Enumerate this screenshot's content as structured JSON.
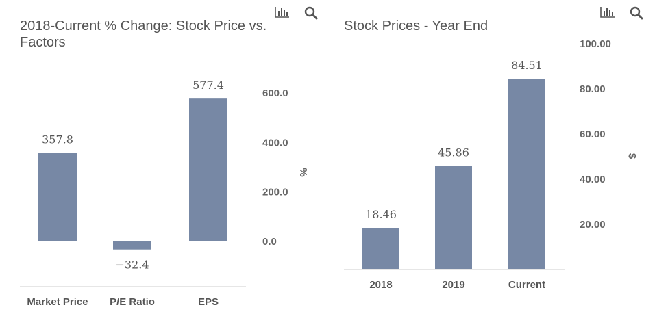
{
  "toolbar": {
    "chart_icon": "bar-chart-icon",
    "search_icon": "search-icon"
  },
  "colors": {
    "bar": "#7788a5",
    "text": "#555555",
    "axis": "#cccccc"
  },
  "chart_data": [
    {
      "type": "bar",
      "title": "2018-Current % Change: Stock Price vs. Factors",
      "title_lines": [
        "2018-Current % Change: Stock Price vs.",
        "Factors"
      ],
      "categories": [
        "Market Price",
        "P/E Ratio",
        "EPS"
      ],
      "values": [
        357.8,
        -32.4,
        577.4
      ],
      "value_labels": [
        "357.8",
        "−32.4",
        "577.4"
      ],
      "ylabel": "%",
      "yticks": [
        0,
        200,
        400,
        600
      ],
      "ytick_labels": [
        "0.0",
        "200.0",
        "400.0",
        "600.0"
      ],
      "y_axis_side": "right",
      "grid": false
    },
    {
      "type": "bar",
      "title": "Stock Prices - Year End",
      "categories": [
        "2018",
        "2019",
        "Current"
      ],
      "values": [
        18.46,
        45.86,
        84.51
      ],
      "value_labels": [
        "18.46",
        "45.86",
        "84.51"
      ],
      "ylabel": "$",
      "yticks": [
        20,
        40,
        60,
        80,
        100
      ],
      "ytick_labels": [
        "20.00",
        "40.00",
        "60.00",
        "80.00",
        "100.00"
      ],
      "y_axis_side": "right",
      "grid": false
    }
  ]
}
